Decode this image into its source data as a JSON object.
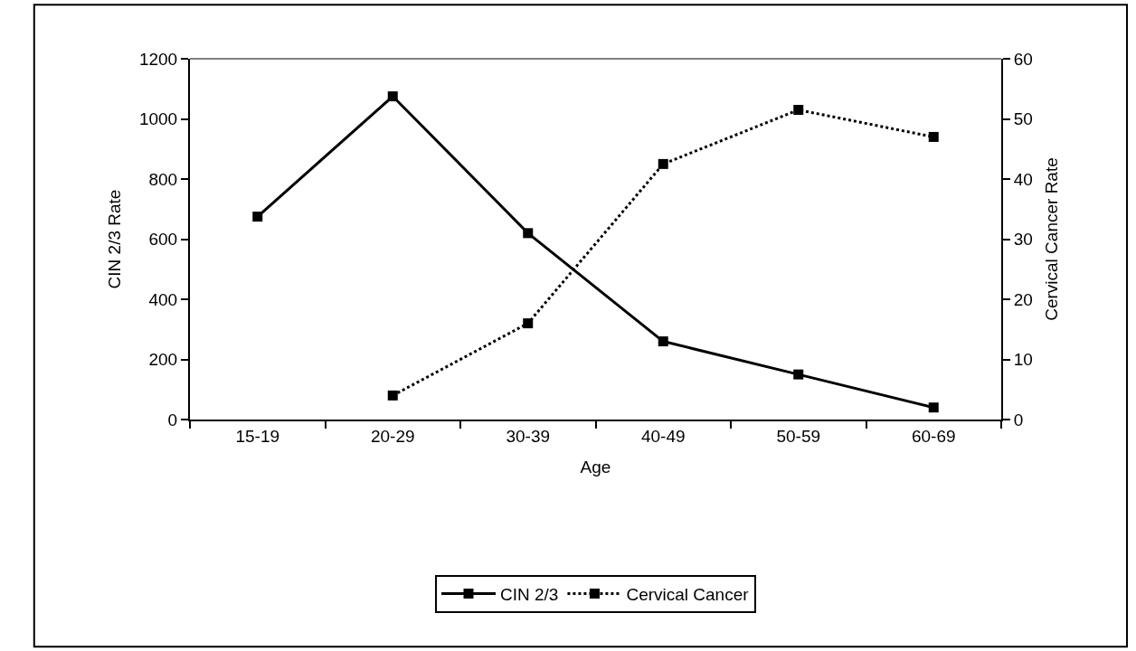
{
  "chart_data": {
    "type": "line",
    "xlabel": "Age",
    "ylabel": "CIN 2/3 Rate",
    "y2label": "Cervical Cancer Rate",
    "categories": [
      "15-19",
      "20-29",
      "30-39",
      "40-49",
      "50-59",
      "60-69"
    ],
    "series": [
      {
        "name": "CIN 2/3",
        "color": "#000000",
        "line_style": "solid",
        "values": [
          675,
          1075,
          620,
          260,
          150,
          40
        ]
      },
      {
        "name": "Cervical Cancer",
        "color": "#000000",
        "line_style": "dotted",
        "axis": "y2",
        "values": [
          null,
          4,
          16,
          42.5,
          51.5,
          47
        ]
      }
    ],
    "ylim": [
      0,
      1200
    ],
    "yticks": [
      0,
      200,
      400,
      600,
      800,
      1000,
      1200
    ],
    "y2lim": [
      0,
      60
    ],
    "y2ticks": [
      0,
      10,
      20,
      30,
      40,
      50,
      60
    ],
    "marker": "square",
    "legend": "bottom"
  }
}
